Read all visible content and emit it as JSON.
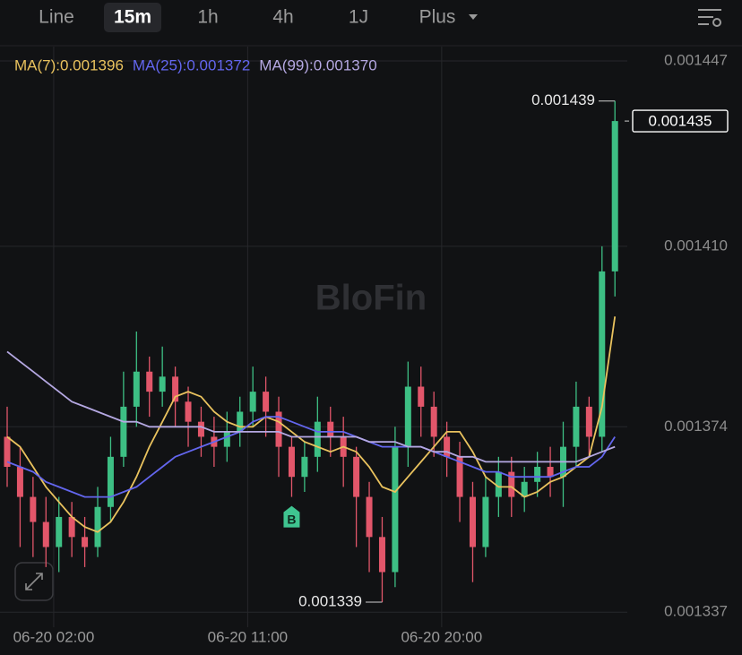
{
  "toolbar": {
    "tabs": [
      "Line",
      "15m",
      "1h",
      "4h",
      "1J",
      "Plus"
    ],
    "active_tab": 1
  },
  "chart_data": {
    "type": "candlestick",
    "watermark": "BloFin",
    "open": [
      0.001372,
      0.001366,
      0.00136,
      0.001355,
      0.00135,
      0.001356,
      0.001352,
      0.00135,
      0.001358,
      0.001368,
      0.001378,
      0.001385,
      0.001381,
      0.001384,
      0.001379,
      0.001375,
      0.001372,
      0.00137,
      0.001373,
      0.001377,
      0.001381,
      0.001377,
      0.00137,
      0.001364,
      0.001368,
      0.001375,
      0.001372,
      0.001368,
      0.00136,
      0.001352,
      0.001345,
      0.00137,
      0.001382,
      0.001378,
      0.001372,
      0.001368,
      0.00136,
      0.00135,
      0.00136,
      0.001365,
      0.00136,
      0.001363,
      0.001366,
      0.001364,
      0.00137,
      0.001378,
      0.001372,
      0.001405
    ],
    "close": [
      0.001366,
      0.00136,
      0.001355,
      0.00135,
      0.001356,
      0.001352,
      0.00135,
      0.001358,
      0.001368,
      0.001378,
      0.001385,
      0.001381,
      0.001384,
      0.001379,
      0.001375,
      0.001372,
      0.00137,
      0.001373,
      0.001377,
      0.001381,
      0.001377,
      0.00137,
      0.001364,
      0.001368,
      0.001375,
      0.001372,
      0.001368,
      0.00136,
      0.001352,
      0.001345,
      0.00137,
      0.001382,
      0.001378,
      0.001372,
      0.001368,
      0.00136,
      0.00135,
      0.00136,
      0.001365,
      0.00136,
      0.001363,
      0.001366,
      0.001364,
      0.00137,
      0.001378,
      0.001372,
      0.001405,
      0.001435
    ],
    "high": [
      0.001378,
      0.00137,
      0.001364,
      0.00136,
      0.00136,
      0.001359,
      0.001356,
      0.001362,
      0.001372,
      0.001385,
      0.001393,
      0.001388,
      0.00139,
      0.001386,
      0.001382,
      0.001378,
      0.001376,
      0.001377,
      0.00138,
      0.001386,
      0.001384,
      0.00138,
      0.001372,
      0.001371,
      0.00138,
      0.001378,
      0.001376,
      0.00137,
      0.001363,
      0.001356,
      0.001374,
      0.001387,
      0.001386,
      0.001381,
      0.001375,
      0.001371,
      0.001363,
      0.001364,
      0.001368,
      0.001368,
      0.001366,
      0.001369,
      0.00137,
      0.001375,
      0.001383,
      0.00138,
      0.00141,
      0.001439
    ],
    "low": [
      0.001362,
      0.00135,
      0.001348,
      0.001346,
      0.001345,
      0.001348,
      0.001346,
      0.001348,
      0.001355,
      0.001366,
      0.001374,
      0.001376,
      0.001378,
      0.001374,
      0.00137,
      0.001368,
      0.001366,
      0.001367,
      0.00137,
      0.001374,
      0.001372,
      0.001364,
      0.00136,
      0.001361,
      0.001365,
      0.001368,
      0.001362,
      0.00135,
      0.001345,
      0.001339,
      0.001342,
      0.001366,
      0.001372,
      0.001368,
      0.001364,
      0.001355,
      0.001343,
      0.001348,
      0.001356,
      0.001356,
      0.001357,
      0.00136,
      0.00136,
      0.001358,
      0.001366,
      0.001368,
      0.001369,
      0.0014
    ],
    "up_color": "#3dbf84",
    "down_color": "#e2566a",
    "series": [
      {
        "name": "MA(7):",
        "color": "#e9c25e",
        "values": [
          0.001372,
          0.00137,
          0.001366,
          0.001362,
          0.001359,
          0.001356,
          0.001354,
          0.001353,
          0.001355,
          0.001359,
          0.001364,
          0.00137,
          0.001375,
          0.00138,
          0.001381,
          0.00138,
          0.001377,
          0.001375,
          0.001374,
          0.001374,
          0.001376,
          0.001375,
          0.001373,
          0.001371,
          0.00137,
          0.001369,
          0.00137,
          0.001369,
          0.001366,
          0.001362,
          0.001361,
          0.001364,
          0.001367,
          0.00137,
          0.001373,
          0.001373,
          0.001369,
          0.001364,
          0.001362,
          0.001362,
          0.00136,
          0.001361,
          0.001363,
          0.001364,
          0.001366,
          0.001368,
          0.001378,
          0.001396
        ]
      },
      {
        "name": "MA(25):",
        "color": "#6366ee",
        "values": [
          0.001367,
          0.001366,
          0.001365,
          0.001363,
          0.001362,
          0.001361,
          0.00136,
          0.00136,
          0.00136,
          0.001361,
          0.001362,
          0.001364,
          0.001366,
          0.001368,
          0.001369,
          0.00137,
          0.001371,
          0.001372,
          0.001373,
          0.001375,
          0.001376,
          0.001376,
          0.001375,
          0.001374,
          0.001373,
          0.001373,
          0.001373,
          0.001372,
          0.001371,
          0.00137,
          0.00137,
          0.00137,
          0.00137,
          0.001369,
          0.001368,
          0.001367,
          0.001366,
          0.001365,
          0.001365,
          0.001364,
          0.001364,
          0.001364,
          0.001364,
          0.001365,
          0.001366,
          0.001366,
          0.001368,
          0.001372
        ]
      },
      {
        "name": "MA(99):",
        "color": "#b5a8e2",
        "values": [
          0.001389,
          0.001387,
          0.001385,
          0.001383,
          0.001381,
          0.001379,
          0.001378,
          0.001377,
          0.001376,
          0.001375,
          0.001375,
          0.001374,
          0.001374,
          0.001374,
          0.001374,
          0.001374,
          0.001373,
          0.001373,
          0.001373,
          0.001373,
          0.001373,
          0.001373,
          0.001372,
          0.001372,
          0.001372,
          0.001372,
          0.001372,
          0.001372,
          0.001371,
          0.001371,
          0.001371,
          0.00137,
          0.00137,
          0.001369,
          0.001369,
          0.001368,
          0.001368,
          0.001367,
          0.001367,
          0.001367,
          0.001367,
          0.001367,
          0.001367,
          0.001367,
          0.001367,
          0.001368,
          0.001369,
          0.00137
        ],
        "value_labels": [
          null,
          null,
          null,
          null,
          null,
          null,
          null,
          null,
          null,
          null,
          null,
          null,
          null,
          null,
          null,
          null,
          null,
          null,
          null,
          null,
          null,
          null,
          null,
          null,
          null,
          null,
          null,
          null,
          null,
          null,
          null,
          null,
          null,
          null,
          null,
          null,
          null,
          null,
          null,
          null,
          null,
          null,
          null,
          null,
          null,
          null,
          null,
          "0.001370"
        ]
      }
    ],
    "ylim": [
      0.001334,
      0.001452
    ],
    "yticks": [
      0.001447,
      {
        "value": 0.00141,
        "label": "0.001410"
      },
      0.001374,
      0.001337
    ],
    "xticks": [
      {
        "value": 3.6,
        "label": "06-20 02:00"
      },
      {
        "value": 18.6,
        "label": "06-20 11:00"
      },
      {
        "value": 33.6,
        "label": "06-20 20:00"
      }
    ],
    "markers": [
      {
        "index": 22,
        "label": "B"
      }
    ],
    "grid": true
  }
}
